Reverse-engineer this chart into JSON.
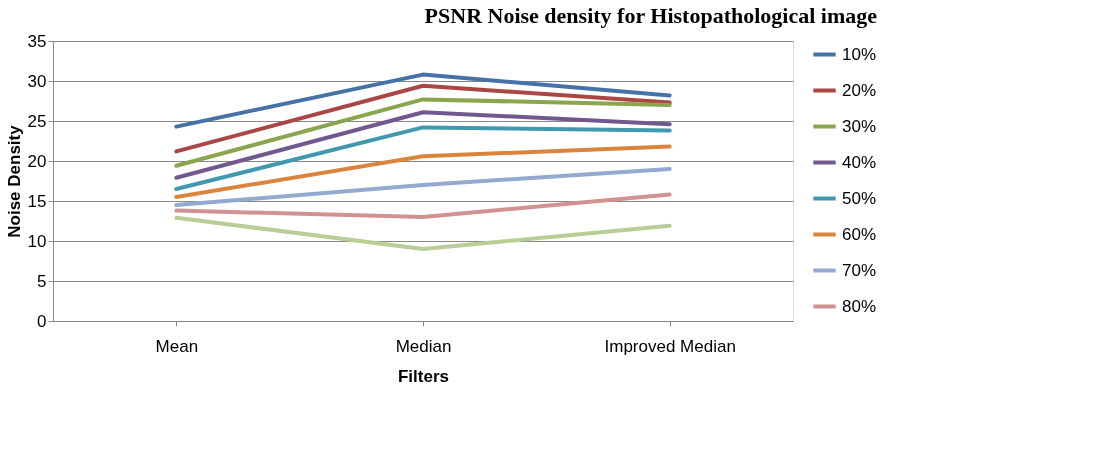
{
  "chart_data": {
    "type": "line",
    "title": "PSNR Noise density for Histopathological image",
    "xlabel": "Filters",
    "ylabel": "Noise Density",
    "categories": [
      "Mean",
      "Median",
      "Improved Median"
    ],
    "ylim": [
      0,
      35
    ],
    "yticks": [
      0,
      5,
      10,
      15,
      20,
      25,
      30,
      35
    ],
    "grid": "y",
    "legend": "right",
    "marker": "none",
    "line_style": "solid",
    "series": [
      {
        "name": "10%",
        "color": "#4572a7",
        "values": [
          24.3,
          30.8,
          28.2
        ]
      },
      {
        "name": "20%",
        "color": "#aa4643",
        "values": [
          21.2,
          29.4,
          27.3
        ]
      },
      {
        "name": "30%",
        "color": "#89a54e",
        "values": [
          19.4,
          27.7,
          27.0
        ]
      },
      {
        "name": "40%",
        "color": "#71588f",
        "values": [
          17.9,
          26.1,
          24.6
        ]
      },
      {
        "name": "50%",
        "color": "#4198af",
        "values": [
          16.5,
          24.2,
          23.8
        ]
      },
      {
        "name": "60%",
        "color": "#db843d",
        "values": [
          15.5,
          20.6,
          21.8
        ]
      },
      {
        "name": "70%",
        "color": "#93a9cf",
        "values": [
          14.5,
          17.0,
          19.0
        ]
      },
      {
        "name": "80%",
        "color": "#d19392",
        "values": [
          13.8,
          13.0,
          15.8
        ]
      },
      {
        "color": "#b9cd96",
        "values": [
          12.9,
          9.0,
          11.9
        ]
      }
    ]
  }
}
